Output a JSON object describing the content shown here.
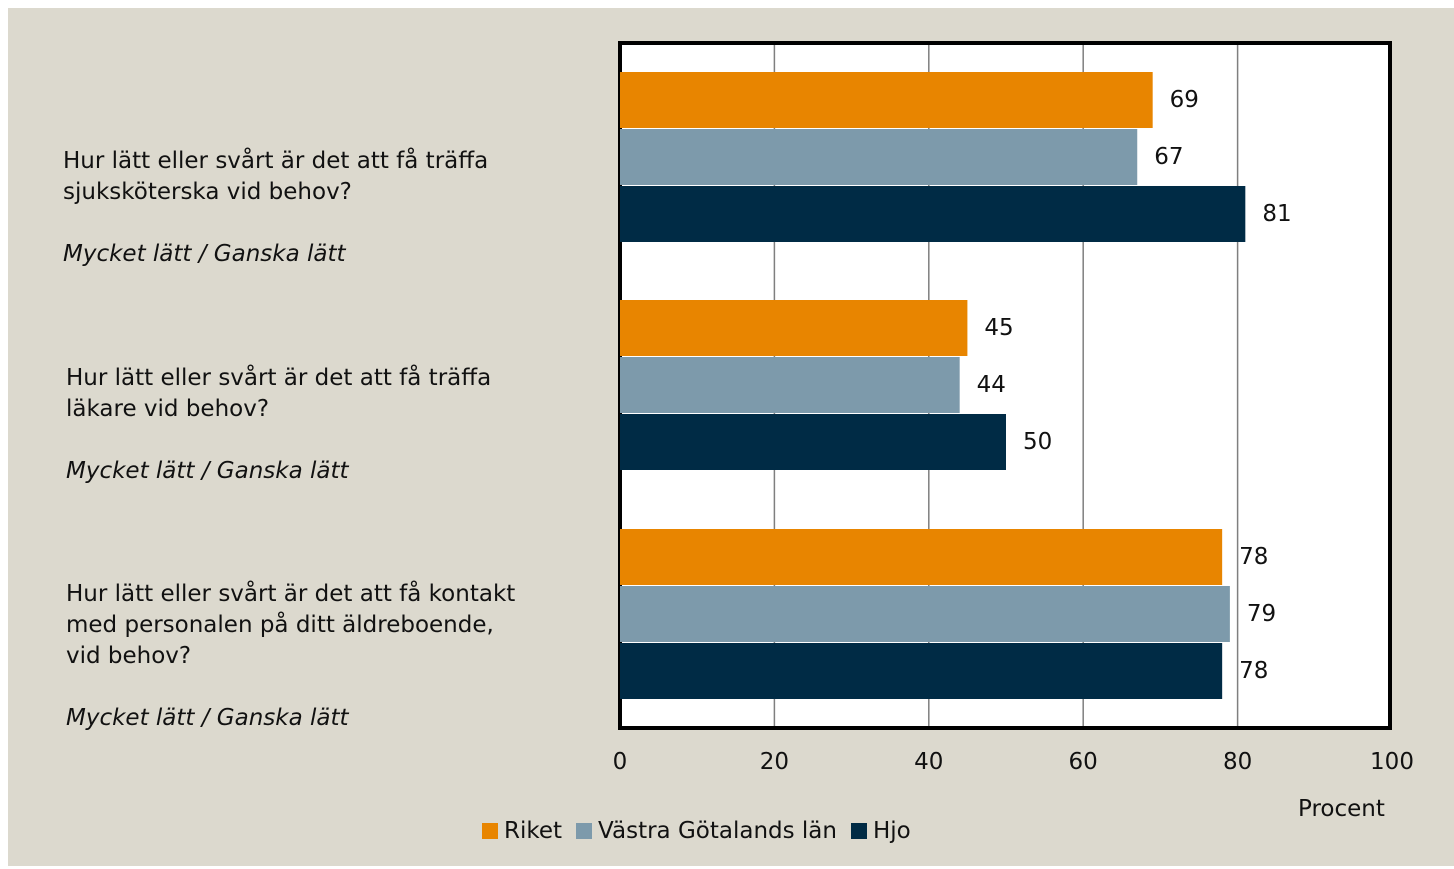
{
  "chart_data": {
    "type": "bar",
    "orientation": "horizontal",
    "categories": [
      {
        "question": "Hur lätt eller svårt är det att få träffa\nsjuksköterska vid behov?",
        "answer": "Mycket lätt / Ganska lätt"
      },
      {
        "question": "Hur lätt eller svårt är det att få träffa\nläkare vid behov?",
        "answer": "Mycket lätt / Ganska lätt"
      },
      {
        "question": "Hur lätt eller svårt är det att få kontakt\nmed personalen på ditt äldreboende,\nvid behov?",
        "answer": "Mycket lätt / Ganska lätt"
      }
    ],
    "series": [
      {
        "name": "Riket",
        "color": "#e88500",
        "values": [
          69,
          45,
          78
        ]
      },
      {
        "name": "Västra Götalands län",
        "color": "#7d9aab",
        "values": [
          67,
          44,
          79
        ]
      },
      {
        "name": "Hjo",
        "color": "#002b45",
        "values": [
          81,
          50,
          78
        ]
      }
    ],
    "xlabel": "Procent",
    "xlim": [
      0,
      100
    ],
    "xticks": [
      0,
      20,
      40,
      60,
      80,
      100
    ],
    "grid": "vertical",
    "legend_position": "bottom"
  }
}
